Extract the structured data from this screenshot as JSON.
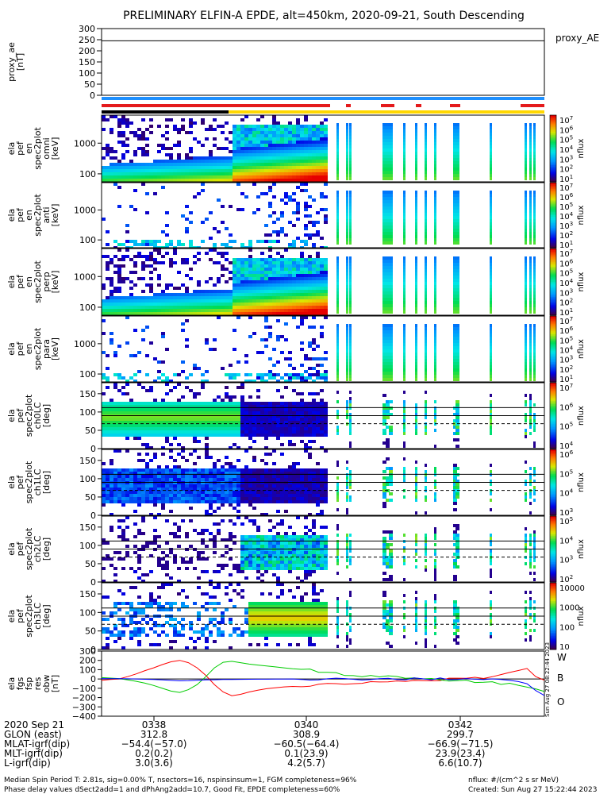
{
  "title": "PRELIMINARY ELFIN-A EPDE, alt=450km, 2020-09-21, South Descending",
  "colors": {
    "region_red": "#e41a1c",
    "region_yellow": "#ffd700",
    "region_blue": "#1e90ff",
    "trace_w": "#ff0000",
    "trace_b": "#00cc00",
    "trace_o": "#0000ff"
  },
  "ephemeris": {
    "date": "2020 Sep 21",
    "row_labels": [
      "GLON (east)",
      "MLAT-igrf(dip)",
      "MLT-igrf(dip)",
      "L-igrf(dip)"
    ],
    "columns": [
      {
        "time": "0338",
        "values": [
          "312.8",
          "−54.4(−57.0)",
          "0.2(0.2)",
          "3.0(3.6)"
        ]
      },
      {
        "time": "0340",
        "values": [
          "308.9",
          "−60.5(−64.4)",
          "0.1(23.9)",
          "4.2(5.7)"
        ]
      },
      {
        "time": "0342",
        "values": [
          "299.7",
          "−66.9(−71.5)",
          "23.9(23.4)",
          "6.6(10.7)"
        ]
      }
    ]
  },
  "footer": {
    "line1_left": "Median Spin Period T: 2.81s, sig=0.00% T, nsectors=16, nspinsinsum=1, FGM completeness=96%",
    "line2_left": "Phase delay values dSect2add=1 and dPhAng2add=10.7, Good Fit, EPDE completeness=60%",
    "line1_right": "nflux: #/(cm^2 s sr MeV)",
    "line2_right": "Created: Sun Aug 27 15:22:44 2023",
    "vertical_stamp": "Sun Aug 27 08:22:44 2023"
  },
  "chart_data": [
    {
      "type": "line",
      "panel": "proxy_ae",
      "ylabel": "proxy_ae\n[nT]",
      "ylim": [
        0,
        300
      ],
      "yticks": [
        "300",
        "250",
        "200",
        "150",
        "100",
        "50",
        "0"
      ],
      "legend": "proxy_AE",
      "series": [
        {
          "name": "proxy_AE",
          "values": [
            245
          ]
        }
      ]
    },
    {
      "type": "heatmap",
      "panel": "omni",
      "ylabel": "ela\npef\nen\nspec2plot\nomni\n[keV]",
      "yscale": "log",
      "yticks": [
        "1000",
        "100"
      ],
      "colorbar": {
        "label": "nflux",
        "ticks": [
          "10^7",
          "10^6",
          "10^5",
          "10^4",
          "10^3",
          "10^2",
          "10^1"
        ]
      }
    },
    {
      "type": "heatmap",
      "panel": "anti",
      "ylabel": "ela\npef\nen\nspec2plot\nanti\n[keV]",
      "yscale": "log",
      "yticks": [
        "1000",
        "100"
      ],
      "colorbar": {
        "label": "nflux",
        "ticks": [
          "10^7",
          "10^6",
          "10^5",
          "10^4",
          "10^3",
          "10^2",
          "10^1"
        ]
      }
    },
    {
      "type": "heatmap",
      "panel": "perp",
      "ylabel": "ela\npef\nen\nspec2plot\nperp\n[keV]",
      "yscale": "log",
      "yticks": [
        "1000",
        "100"
      ],
      "colorbar": {
        "label": "nflux",
        "ticks": [
          "10^7",
          "10^6",
          "10^5",
          "10^4",
          "10^3",
          "10^2",
          "10^1"
        ]
      }
    },
    {
      "type": "heatmap",
      "panel": "para",
      "ylabel": "ela\npef\nen\nspec2plot\npara\n[keV]",
      "yscale": "log",
      "yticks": [
        "1000",
        "100"
      ],
      "colorbar": {
        "label": "nflux",
        "ticks": [
          "10^7",
          "10^6",
          "10^5",
          "10^4",
          "10^3",
          "10^2",
          "10^1"
        ]
      }
    },
    {
      "type": "heatmap",
      "panel": "ch0LC",
      "ylabel": "ela\npef\nspec2plot\nch0LC\n[deg]",
      "ylim": [
        0,
        180
      ],
      "yticks": [
        "150",
        "100",
        "50",
        "0"
      ],
      "colorbar": {
        "label": "nflux",
        "ticks": [
          "10^7",
          "10^6",
          "10^5",
          "10^4"
        ]
      }
    },
    {
      "type": "heatmap",
      "panel": "ch1LC",
      "ylabel": "ela\npef\nspec2plot\nch1LC\n[deg]",
      "ylim": [
        0,
        180
      ],
      "yticks": [
        "150",
        "100",
        "50",
        "0"
      ],
      "colorbar": {
        "label": "nflux",
        "ticks": [
          "10^6",
          "10^5",
          "10^4",
          "10^3"
        ]
      }
    },
    {
      "type": "heatmap",
      "panel": "ch2LC",
      "ylabel": "ela\npef\nspec2plot\nch2LC\n[deg]",
      "ylim": [
        0,
        180
      ],
      "yticks": [
        "150",
        "100",
        "50",
        "0"
      ],
      "colorbar": {
        "label": "nflux",
        "ticks": [
          "10^5",
          "10^4",
          "10^3",
          "10^2"
        ]
      }
    },
    {
      "type": "heatmap",
      "panel": "ch3LC",
      "ylabel": "ela\npef\nspec2plot\nch3LC\n[deg]",
      "ylim": [
        0,
        180
      ],
      "yticks": [
        "150",
        "100",
        "50",
        "0"
      ],
      "colorbar": {
        "label": "nflux",
        "ticks": [
          "10000",
          "1000",
          "100",
          "10"
        ]
      }
    },
    {
      "type": "line",
      "panel": "fgs",
      "ylabel": "ela\nfgs\nfsp\nres\nobw\n[nT]",
      "ylim": [
        -400,
        300
      ],
      "yticks": [
        "300",
        "200",
        "100",
        "0",
        "−100",
        "−200",
        "−300",
        "−400"
      ],
      "legend": [
        "W",
        "B",
        "O"
      ],
      "series": [
        {
          "name": "W",
          "values": [
            -15,
            -5,
            0,
            25,
            55,
            90,
            120,
            155,
            185,
            200,
            175,
            120,
            40,
            -60,
            -140,
            -180,
            -165,
            -140,
            -120,
            -105,
            -95,
            -85,
            -80,
            -75,
            -70,
            -60,
            -55,
            -50,
            -45,
            -40,
            -38,
            -35,
            -30,
            -28,
            -25,
            -22,
            -20,
            -18,
            -15,
            -10,
            -5,
            0,
            5,
            10,
            20,
            30,
            40,
            60,
            80,
            100,
            20,
            -20
          ]
        },
        {
          "name": "B",
          "values": [
            15,
            10,
            5,
            -10,
            -25,
            -45,
            -70,
            -100,
            -130,
            -145,
            -115,
            -60,
            25,
            120,
            180,
            190,
            175,
            160,
            150,
            140,
            130,
            120,
            110,
            100,
            95,
            85,
            75,
            60,
            50,
            40,
            35,
            30,
            25,
            20,
            15,
            10,
            5,
            0,
            -5,
            -10,
            -15,
            -20,
            -25,
            -30,
            -35,
            -40,
            -50,
            -60,
            -70,
            -80,
            -100,
            -120
          ]
        },
        {
          "name": "O",
          "values": [
            5,
            4,
            3,
            2,
            0,
            -3,
            -6,
            -10,
            -15,
            -20,
            -18,
            -14,
            -10,
            -8,
            -6,
            -5,
            -4,
            -3,
            -2,
            -2,
            -1,
            -1,
            0,
            0,
            0,
            1,
            1,
            2,
            2,
            3,
            3,
            2,
            2,
            1,
            1,
            0,
            0,
            0,
            0,
            -1,
            -1,
            -2,
            -2,
            -3,
            -3,
            -4,
            -5,
            -10,
            -30,
            -60,
            -130,
            -190
          ]
        }
      ]
    }
  ]
}
